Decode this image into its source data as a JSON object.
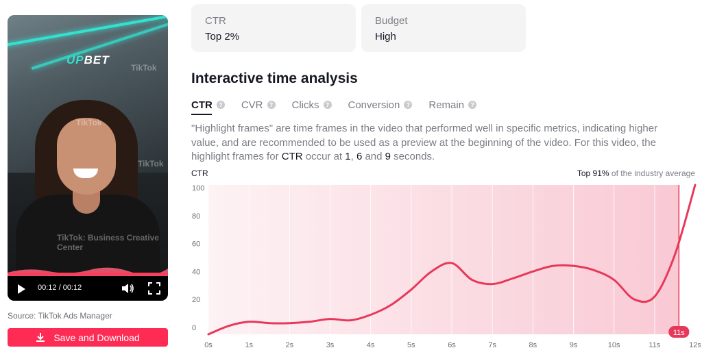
{
  "video": {
    "brand_logo": "UPBET",
    "watermarks": [
      "TikTok",
      "TikTok",
      "TikTok",
      "TikTok: Business Creative Center"
    ],
    "time": "00:12 / 00:12",
    "progress_fraction": 1.0
  },
  "source_note": "Source: TikTok Ads Manager",
  "download_button": {
    "label": "Save and Download",
    "icon": "download-icon"
  },
  "metrics": [
    {
      "label": "CTR",
      "value": "Top 2%"
    },
    {
      "label": "Budget",
      "value": "High"
    }
  ],
  "section_title": "Interactive time analysis",
  "tabs": [
    {
      "label": "CTR",
      "active": true
    },
    {
      "label": "CVR",
      "active": false
    },
    {
      "label": "Clicks",
      "active": false
    },
    {
      "label": "Conversion",
      "active": false
    },
    {
      "label": "Remain",
      "active": false
    }
  ],
  "description": {
    "part1": "\"Highlight frames\" are time frames in the video that performed well in specific metrics, indicating higher value, and are recommended to be used as a preview at the beginning of the video. For this video, the highlight frames for ",
    "metric": "CTR",
    "part2": " occur at ",
    "frame1": "1",
    "sep1": ", ",
    "frame2": "6",
    "sep2": " and ",
    "frame3": "9",
    "part3": " seconds."
  },
  "chart_header": {
    "ylabel": "CTR",
    "note_bold": "Top 91%",
    "note_rest": " of the industry average"
  },
  "colors": {
    "accent": "#fe2c55",
    "line": "#e8385a",
    "fill": "#f9c9d4"
  },
  "chart_data": {
    "type": "area",
    "x": [
      0,
      0.5,
      1,
      1.5,
      2,
      2.5,
      3,
      3.5,
      4,
      4.5,
      5,
      5.5,
      6,
      6.5,
      7,
      7.5,
      8,
      8.5,
      9,
      9.5,
      10,
      10.5,
      11,
      11.5,
      12
    ],
    "values": [
      -5,
      1,
      4,
      3,
      3,
      4,
      6,
      5,
      9,
      16,
      27,
      40,
      46,
      34,
      31,
      35,
      40,
      44,
      44,
      41,
      34,
      20,
      22,
      52,
      102
    ],
    "x_tick_labels": [
      "0s",
      "1s",
      "2s",
      "3s",
      "4s",
      "5s",
      "6s",
      "7s",
      "8s",
      "9s",
      "10s",
      "11s",
      "12s"
    ],
    "y_tick_labels": [
      "0",
      "20",
      "40",
      "60",
      "80",
      "100"
    ],
    "xlim": [
      0,
      12
    ],
    "ylim": [
      -5,
      102
    ],
    "cursor": {
      "x": 11.6,
      "label": "11s"
    }
  }
}
